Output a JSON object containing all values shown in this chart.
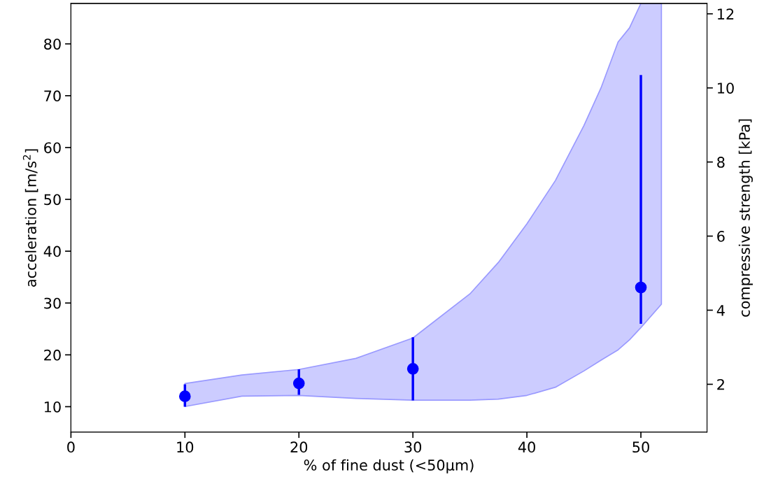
{
  "chart_data": {
    "type": "scatter",
    "xlabel": "% of fine dust (<50µm)",
    "ylabel": "acceleration [m/s$^{2}$]",
    "y2label": "compressive strength [kPa]",
    "xlim": [
      0,
      55.8
    ],
    "xticks": [
      0,
      10,
      20,
      30,
      40,
      50
    ],
    "ylim": [
      5.1,
      87.8
    ],
    "yticks": [
      10,
      20,
      30,
      40,
      50,
      60,
      70,
      80
    ],
    "y2lim": [
      0.71,
      12.28
    ],
    "y2ticks": [
      2,
      4,
      6,
      8,
      10,
      12
    ],
    "grid": false,
    "legend": false,
    "series": [
      {
        "type": "line",
        "axis": "y2",
        "color": "#ccccff",
        "x": [
          10,
          15,
          20,
          25,
          30,
          35,
          37.5,
          40,
          42.5,
          45,
          46.5,
          48,
          49,
          50,
          51.8
        ],
        "values": [
          null,
          null,
          null,
          null,
          null,
          null,
          null,
          null,
          null,
          null,
          null,
          null,
          null,
          null,
          null
        ],
        "lower": [
          1.4,
          1.68,
          1.7,
          1.62,
          1.57,
          1.57,
          1.6,
          1.7,
          1.92,
          2.36,
          2.65,
          2.93,
          3.2,
          3.53,
          4.16
        ],
        "upper": [
          2.02,
          2.25,
          2.4,
          2.7,
          3.25,
          4.44,
          5.29,
          6.33,
          7.5,
          8.98,
          10.0,
          11.24,
          11.62,
          12.28,
          12.28
        ]
      },
      {
        "color": "#0000ff",
        "marker": "circle",
        "x": [
          10,
          20,
          30,
          50
        ],
        "values": [
          12,
          14.5,
          17.3,
          33
        ],
        "errors": [
          [
            10,
            14.3
          ],
          [
            12.3,
            17.2
          ],
          [
            11.2,
            23.4
          ],
          [
            26,
            74
          ]
        ]
      }
    ]
  }
}
